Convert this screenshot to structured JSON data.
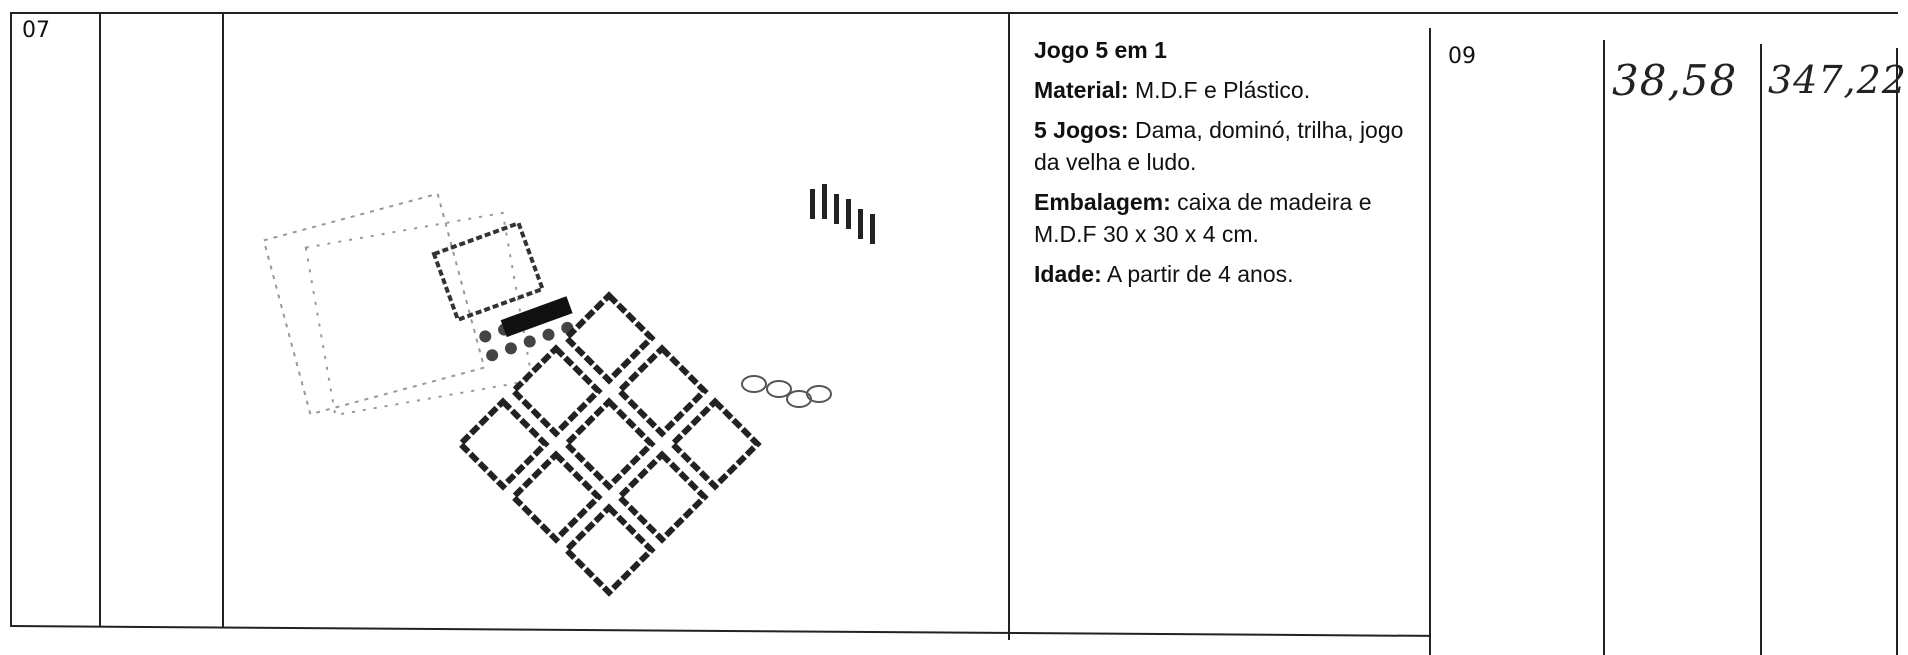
{
  "table": {
    "rows": [
      {
        "item": "07",
        "description": {
          "title": "Jogo 5 em 1",
          "lines": [
            {
              "label": "Material:",
              "text": "M.D.F e Plástico."
            },
            {
              "label": "5 Jogos:",
              "text": "Dama, dominó, trilha, jogo da velha e ludo."
            },
            {
              "label": "Embalagem:",
              "text": "caixa de madeira e M.D.F 30 x 30 x 4 cm."
            },
            {
              "label": "Idade:",
              "text": "A partir de 4 anos."
            }
          ]
        },
        "quantity": "09",
        "unit_price": "38,58",
        "total": "347,22"
      }
    ]
  }
}
